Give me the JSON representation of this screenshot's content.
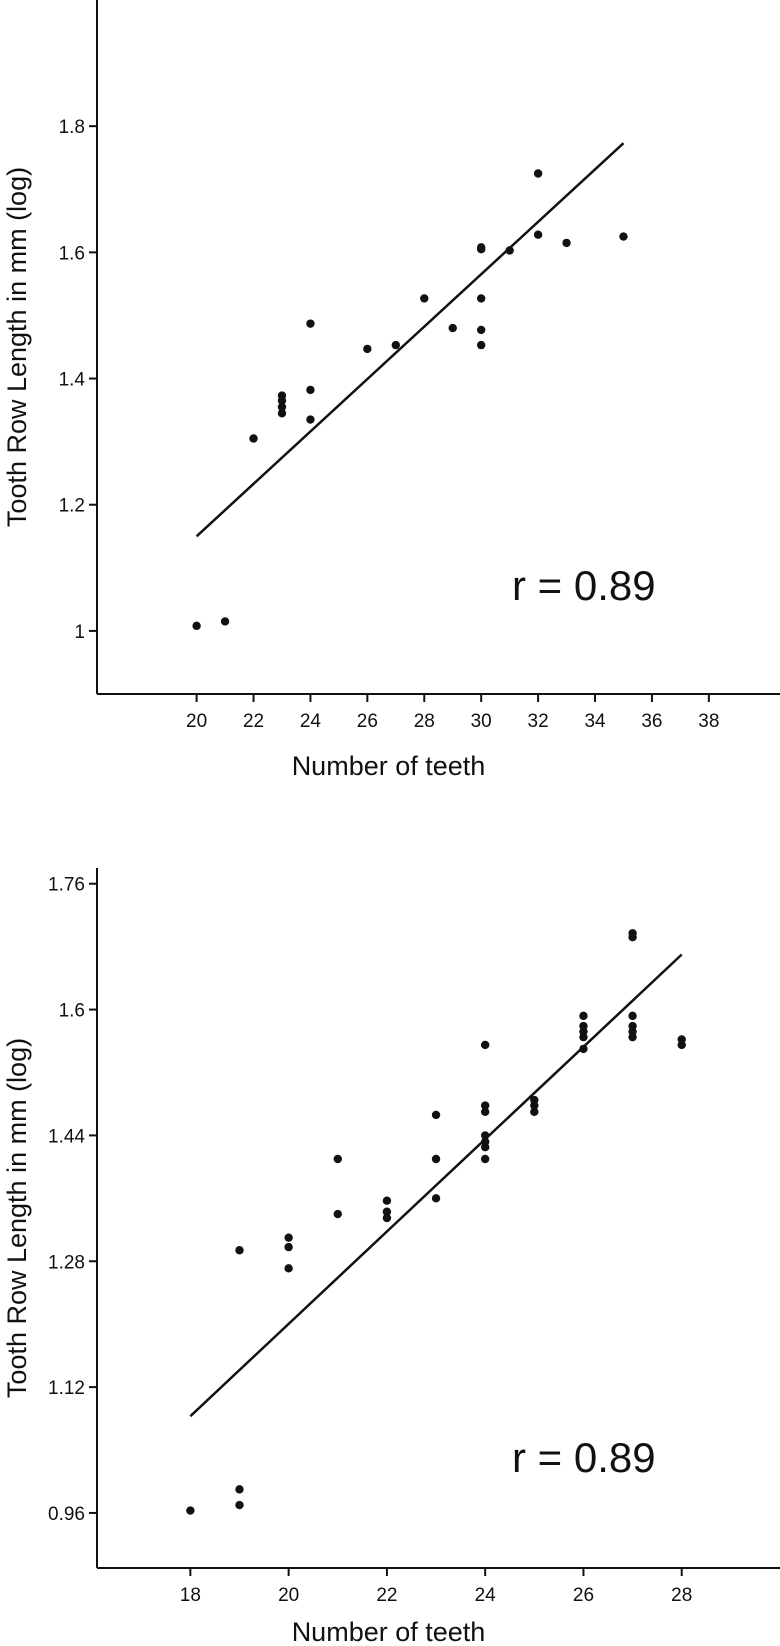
{
  "chart_data": [
    {
      "type": "scatter",
      "xlabel": "Number of teeth",
      "ylabel": "Tooth Row Length in mm (log)",
      "xlim": [
        16.5,
        40.5
      ],
      "ylim": [
        0.9,
        2.0
      ],
      "x_ticks": [
        20,
        22,
        24,
        26,
        28,
        30,
        32,
        34,
        36,
        38
      ],
      "y_ticks": [
        1,
        1.2,
        1.4,
        1.6,
        1.8
      ],
      "y_tick_labels": [
        "1",
        "1.2",
        "1.4",
        "1.6",
        "1.8"
      ],
      "grid": false,
      "annotation": "r = 0.89",
      "series": [
        {
          "points": [
            [
              20,
              1.008
            ],
            [
              21,
              1.015
            ],
            [
              22,
              1.305
            ],
            [
              23,
              1.345
            ],
            [
              23,
              1.355
            ],
            [
              23,
              1.365
            ],
            [
              23,
              1.373
            ],
            [
              24,
              1.335
            ],
            [
              24,
              1.382
            ],
            [
              24,
              1.487
            ],
            [
              26,
              1.447
            ],
            [
              27,
              1.453
            ],
            [
              28,
              1.527
            ],
            [
              29,
              1.48
            ],
            [
              30,
              1.453
            ],
            [
              30,
              1.477
            ],
            [
              30,
              1.527
            ],
            [
              30,
              1.605
            ],
            [
              30,
              1.608
            ],
            [
              31,
              1.603
            ],
            [
              32,
              1.628
            ],
            [
              32,
              1.725
            ],
            [
              33,
              1.615
            ],
            [
              35,
              1.625
            ]
          ]
        }
      ],
      "fit_line": {
        "x": [
          20,
          35
        ],
        "y": [
          1.15,
          1.773
        ]
      }
    },
    {
      "type": "scatter",
      "xlabel": "Number of teeth",
      "ylabel": "Tooth Row Length in mm (log)",
      "xlim": [
        16.1,
        30
      ],
      "ylim": [
        0.89,
        1.78
      ],
      "x_ticks": [
        18,
        20,
        22,
        24,
        26,
        28
      ],
      "y_ticks": [
        0.96,
        1.12,
        1.28,
        1.44,
        1.6,
        1.76
      ],
      "y_tick_labels": [
        "0.96",
        "1.12",
        "1.28",
        "1.44",
        "1.6",
        "1.76"
      ],
      "grid": false,
      "annotation": "r = 0.89",
      "series": [
        {
          "points": [
            [
              18,
              0.963
            ],
            [
              19,
              0.97
            ],
            [
              19,
              0.99
            ],
            [
              19,
              1.294
            ],
            [
              20,
              1.271
            ],
            [
              20,
              1.298
            ],
            [
              20,
              1.31
            ],
            [
              21,
              1.34
            ],
            [
              21,
              1.41
            ],
            [
              22,
              1.335
            ],
            [
              22,
              1.343
            ],
            [
              22,
              1.357
            ],
            [
              23,
              1.36
            ],
            [
              23,
              1.41
            ],
            [
              23,
              1.466
            ],
            [
              24,
              1.41
            ],
            [
              24,
              1.425
            ],
            [
              24,
              1.432
            ],
            [
              24,
              1.44
            ],
            [
              24,
              1.47
            ],
            [
              24,
              1.478
            ],
            [
              24,
              1.555
            ],
            [
              25,
              1.47
            ],
            [
              25,
              1.478
            ],
            [
              25,
              1.485
            ],
            [
              26,
              1.55
            ],
            [
              26,
              1.565
            ],
            [
              26,
              1.572
            ],
            [
              26,
              1.579
            ],
            [
              26,
              1.592
            ],
            [
              27,
              1.565
            ],
            [
              27,
              1.572
            ],
            [
              27,
              1.579
            ],
            [
              27,
              1.592
            ],
            [
              27,
              1.692
            ],
            [
              27,
              1.697
            ],
            [
              28,
              1.555
            ],
            [
              28,
              1.562
            ]
          ]
        }
      ],
      "fit_line": {
        "x": [
          18,
          28
        ],
        "y": [
          1.083,
          1.67
        ]
      }
    }
  ]
}
